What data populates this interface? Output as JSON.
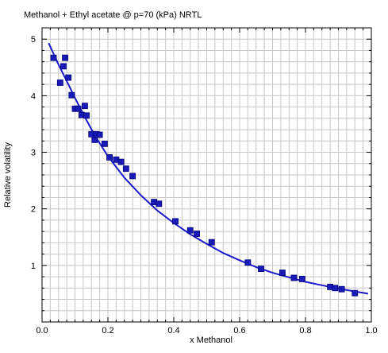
{
  "chart_data": {
    "type": "scatter",
    "title": "Methanol + Ethyl acetate @ p=70 (kPa) NRTL",
    "xlabel": "x Methanol",
    "ylabel": "Relative volatility",
    "xlim": [
      0.0,
      1.0
    ],
    "ylim": [
      0.0,
      5.2
    ],
    "x_ticks": [
      0.0,
      0.2,
      0.4,
      0.6,
      0.8,
      1.0
    ],
    "x_tick_labels": [
      "0.0",
      "0.2",
      "0.4",
      "0.6",
      "0.8",
      "1.0"
    ],
    "y_ticks": [
      1,
      2,
      3,
      4,
      5
    ],
    "y_tick_labels": [
      "1",
      "2",
      "3",
      "4",
      "5"
    ],
    "grid": true,
    "colors": {
      "points": "#1a1ab8",
      "point_edge": "#00007a",
      "line": "#1a1acc",
      "grid": "#c8c8c8"
    },
    "series": [
      {
        "type": "line",
        "x": [
          0.02,
          0.05,
          0.08,
          0.1,
          0.13,
          0.16,
          0.2,
          0.25,
          0.3,
          0.35,
          0.4,
          0.45,
          0.5,
          0.55,
          0.6,
          0.65,
          0.7,
          0.75,
          0.8,
          0.85,
          0.9,
          0.95,
          0.99
        ],
        "y": [
          4.93,
          4.55,
          4.2,
          3.96,
          3.62,
          3.3,
          2.93,
          2.55,
          2.24,
          1.97,
          1.75,
          1.55,
          1.38,
          1.22,
          1.09,
          0.97,
          0.87,
          0.79,
          0.71,
          0.65,
          0.59,
          0.54,
          0.5
        ]
      },
      {
        "type": "scatter",
        "x": [
          0.035,
          0.055,
          0.065,
          0.07,
          0.08,
          0.09,
          0.1,
          0.11,
          0.12,
          0.13,
          0.135,
          0.15,
          0.16,
          0.165,
          0.175,
          0.19,
          0.205,
          0.225,
          0.24,
          0.255,
          0.275,
          0.34,
          0.355,
          0.405,
          0.45,
          0.47,
          0.515,
          0.625,
          0.665,
          0.73,
          0.765,
          0.79,
          0.875,
          0.89,
          0.91,
          0.95
        ],
        "y": [
          4.67,
          4.23,
          4.52,
          4.67,
          4.32,
          4.01,
          3.77,
          3.77,
          3.66,
          3.82,
          3.65,
          3.32,
          3.22,
          3.32,
          3.31,
          3.15,
          2.91,
          2.87,
          2.83,
          2.71,
          2.58,
          2.12,
          2.09,
          1.78,
          1.62,
          1.56,
          1.41,
          1.05,
          0.94,
          0.87,
          0.78,
          0.76,
          0.62,
          0.6,
          0.58,
          0.51
        ]
      }
    ]
  }
}
